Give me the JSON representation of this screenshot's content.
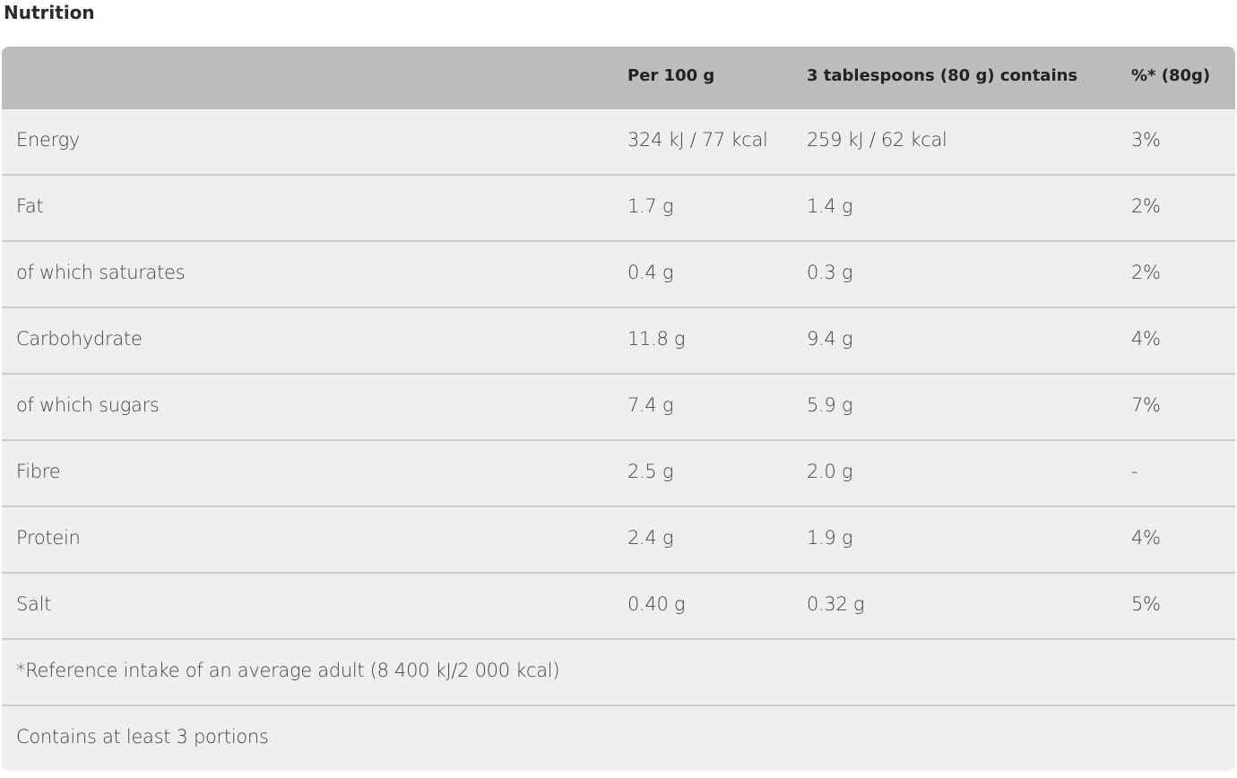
{
  "title": "Nutrition",
  "headers": [
    "",
    "Per 100 g",
    "3 tablespoons (80 g) contains",
    "%* (80g)"
  ],
  "rows": [
    [
      "Energy",
      "324 kJ / 77 kcal",
      "259 kJ / 62 kcal",
      "3%"
    ],
    [
      "Fat",
      "1.7 g",
      "1.4 g",
      "2%"
    ],
    [
      "of which saturates",
      "0.4 g",
      "0.3 g",
      "2%"
    ],
    [
      "Carbohydrate",
      "11.8 g",
      "9.4 g",
      "4%"
    ],
    [
      "of which sugars",
      "7.4 g",
      "5.9 g",
      "7%"
    ],
    [
      "Fibre",
      "2.5 g",
      "2.0 g",
      "-"
    ],
    [
      "Protein",
      "2.4 g",
      "1.9 g",
      "4%"
    ],
    [
      "Salt",
      "0.40 g",
      "0.32 g",
      "5%"
    ]
  ],
  "footnotes": [
    "*Reference intake of an average adult (8 400 kJ/2 000 kcal)",
    "Contains at least 3 portions"
  ]
}
